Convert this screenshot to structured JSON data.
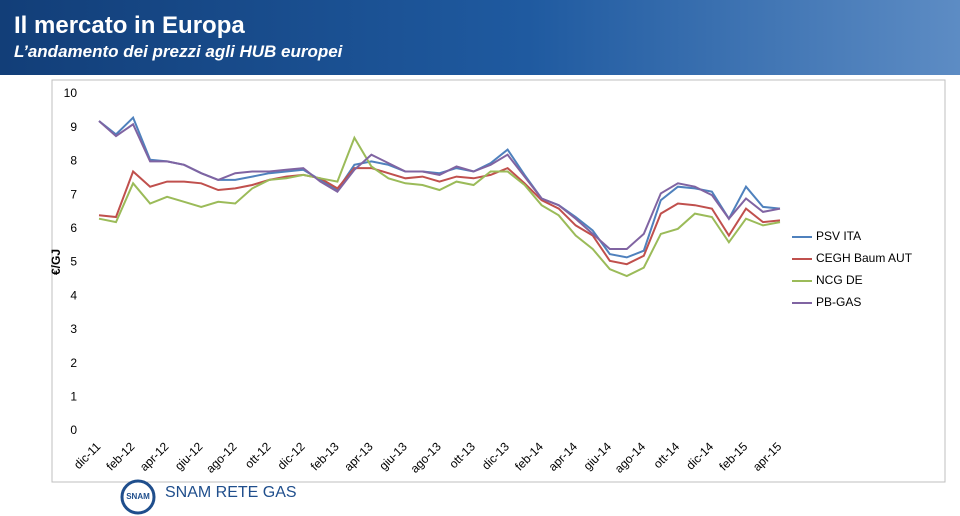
{
  "header": {
    "title": "Il mercato in Europa",
    "subtitle": "L’andamento dei prezzi agli HUB europei"
  },
  "chart_data": {
    "type": "line",
    "y_label": "€/GJ",
    "categories": [
      "dic-11",
      null,
      "feb-12",
      null,
      "apr-12",
      null,
      "giu-12",
      null,
      "ago-12",
      null,
      "ott-12",
      null,
      "dic-12",
      null,
      "feb-13",
      null,
      "apr-13",
      null,
      "giu-13",
      null,
      "ago-13",
      null,
      "ott-13",
      null,
      "dic-13",
      null,
      "feb-14",
      null,
      "apr-14",
      null,
      "giu-14",
      null,
      "ago-14",
      null,
      "ott-14",
      null,
      "dic-14",
      null,
      "feb-15",
      null,
      "apr-15"
    ],
    "series": [
      {
        "name": "PSV ITA",
        "color": "#4f81bd",
        "values": [
          9.2,
          8.8,
          9.3,
          8.05,
          8.0,
          7.9,
          7.65,
          7.45,
          7.45,
          7.55,
          7.65,
          7.7,
          7.75,
          7.45,
          7.15,
          7.9,
          8.0,
          7.9,
          7.7,
          7.7,
          7.65,
          7.8,
          7.7,
          7.95,
          8.35,
          7.6,
          6.9,
          6.7,
          6.35,
          5.95,
          5.25,
          5.15,
          5.35,
          6.85,
          7.25,
          7.2,
          7.1,
          6.3,
          7.25,
          6.65,
          6.6
        ]
      },
      {
        "name": "CEGH Baum AUT",
        "color": "#c0504d",
        "values": [
          6.4,
          6.35,
          7.7,
          7.25,
          7.4,
          7.4,
          7.35,
          7.15,
          7.2,
          7.3,
          7.45,
          7.55,
          7.6,
          7.5,
          7.2,
          7.8,
          7.8,
          7.65,
          7.5,
          7.55,
          7.4,
          7.55,
          7.5,
          7.6,
          7.8,
          7.35,
          6.85,
          6.6,
          6.1,
          5.8,
          5.05,
          4.95,
          5.2,
          6.45,
          6.75,
          6.7,
          6.6,
          5.8,
          6.6,
          6.2,
          6.25
        ]
      },
      {
        "name": "NCG DE",
        "color": "#9bbb59",
        "values": [
          6.3,
          6.2,
          7.35,
          6.75,
          6.95,
          6.8,
          6.65,
          6.8,
          6.75,
          7.2,
          7.45,
          7.5,
          7.6,
          7.5,
          7.4,
          8.7,
          7.85,
          7.5,
          7.35,
          7.3,
          7.15,
          7.4,
          7.3,
          7.7,
          7.7,
          7.3,
          6.7,
          6.4,
          5.8,
          5.4,
          4.8,
          4.6,
          4.85,
          5.85,
          6.0,
          6.45,
          6.35,
          5.6,
          6.3,
          6.1,
          6.2
        ]
      },
      {
        "name": "PB-GAS",
        "color": "#8064a2",
        "values": [
          9.2,
          8.75,
          9.1,
          8.0,
          8.0,
          7.9,
          7.65,
          7.45,
          7.65,
          7.7,
          7.7,
          7.75,
          7.8,
          7.4,
          7.1,
          7.75,
          8.2,
          7.95,
          7.7,
          7.7,
          7.6,
          7.85,
          7.7,
          7.9,
          8.2,
          7.55,
          6.9,
          6.7,
          6.3,
          5.85,
          5.4,
          5.4,
          5.85,
          7.05,
          7.35,
          7.25,
          7.0,
          6.3,
          6.9,
          6.5,
          6.6
        ]
      }
    ],
    "ylim": [
      0,
      10
    ],
    "yticks": [
      0,
      1,
      2,
      3,
      4,
      5,
      6,
      7,
      8,
      9,
      10
    ],
    "grid": false,
    "legend": "right"
  },
  "footer": {
    "logo_mark": "SNAM",
    "brand": "SNAM RETE GAS"
  }
}
